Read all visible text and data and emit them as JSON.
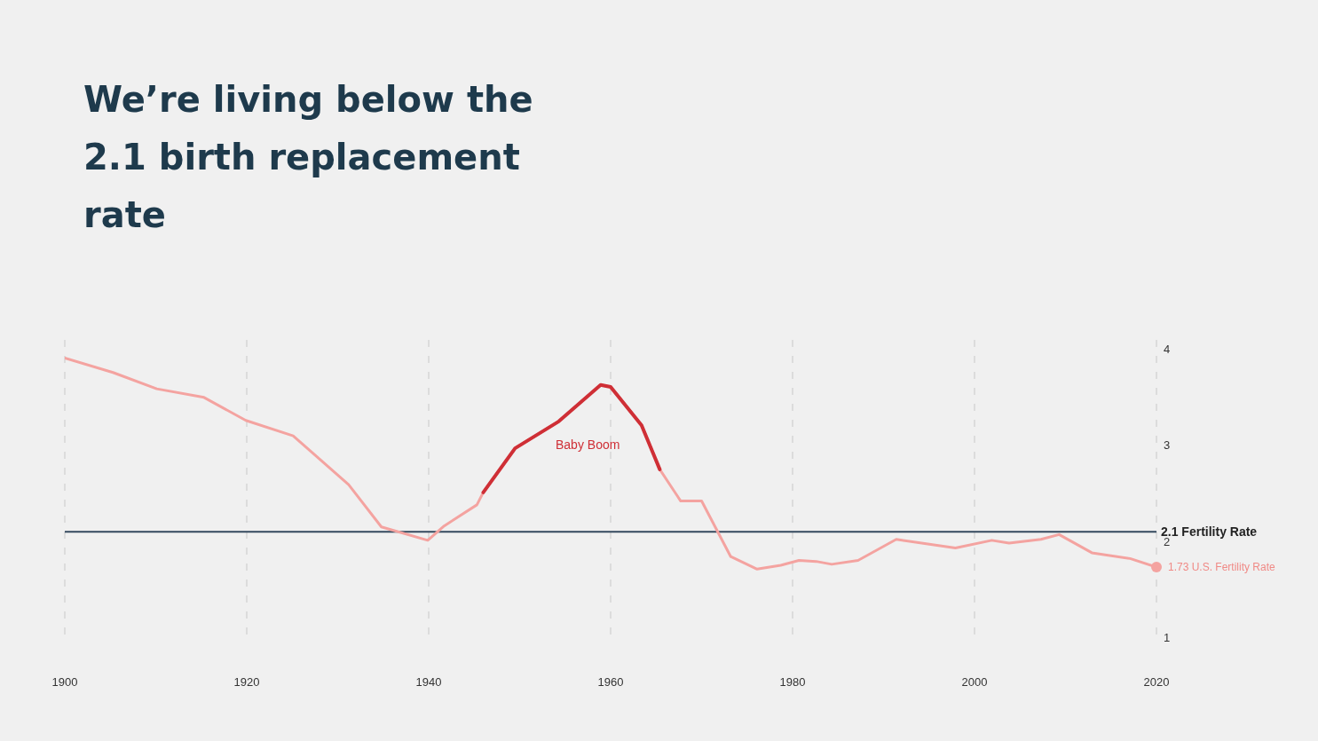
{
  "chart_data": {
    "type": "line",
    "title": "We’re living below the 2.1 birth replacement rate",
    "series": [
      {
        "color": "#f4a3a0",
        "x": [
          1900,
          1905.3,
          1910.1,
          1915.3,
          1919.9,
          1925.1,
          1931.2,
          1934.8,
          1939.9,
          1941.7,
          1945.3,
          1946,
          1949.5,
          1954.3,
          1958.9,
          1960,
          1963.4,
          1965.4,
          1967.7,
          1970,
          1973.2,
          1976.1,
          1978.7,
          1980.7,
          1982.6,
          1984.3,
          1987.2,
          1991.4,
          1997.9,
          2001.9,
          2003.8,
          2007.3,
          2009.3,
          2012.9,
          2017.1,
          2020
        ],
        "values": [
          3.91,
          3.76,
          3.59,
          3.5,
          3.26,
          3.1,
          2.59,
          2.15,
          2.01,
          2.16,
          2.38,
          2.51,
          2.97,
          3.25,
          3.63,
          3.61,
          3.21,
          2.75,
          2.42,
          2.42,
          1.84,
          1.71,
          1.75,
          1.8,
          1.79,
          1.76,
          1.8,
          2.02,
          1.93,
          2.01,
          1.98,
          2.02,
          2.07,
          1.88,
          1.82,
          1.73
        ]
      },
      {
        "color": "#cf2f36",
        "x": [
          1946,
          1949.5,
          1954.3,
          1958.9,
          1960,
          1963.4,
          1965.4
        ],
        "values": [
          2.51,
          2.97,
          3.25,
          3.63,
          3.61,
          3.21,
          2.75
        ]
      }
    ],
    "xlim": [
      1900,
      2020
    ],
    "xticks": [
      1900,
      1920,
      1940,
      1960,
      1980,
      2000,
      2020
    ],
    "ylim": [
      1,
      4.1
    ],
    "yticks": [
      1,
      2,
      3,
      4
    ],
    "grid": "x",
    "ref_lines": [
      {
        "axis": "y",
        "value": 2.1,
        "label": "2.1 Fertility Rate",
        "color": "#34495e"
      }
    ],
    "annotations": [
      "Baby Boom",
      {
        "text": "1.73 U.S. Fertility Rate",
        "x": 2020,
        "y": 1.73
      }
    ]
  }
}
